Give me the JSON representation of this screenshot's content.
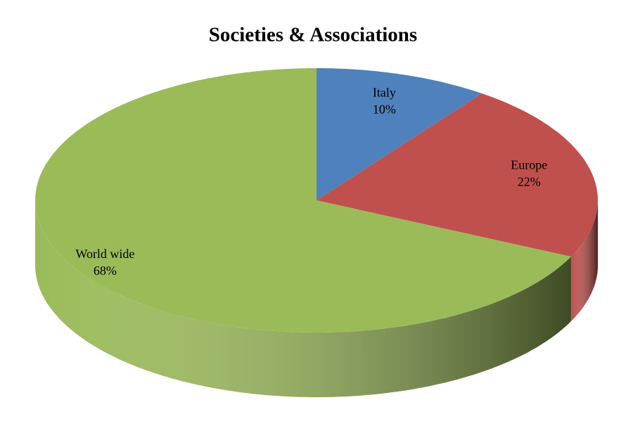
{
  "chart_data": {
    "type": "pie",
    "title": "Societies & Associations",
    "categories": [
      "Italy",
      "Europe",
      "World wide"
    ],
    "values": [
      10,
      22,
      68
    ],
    "value_labels": [
      "10%",
      "22%",
      "68%"
    ],
    "colors": [
      "#4f81bd",
      "#c0504d",
      "#9bbb59"
    ]
  }
}
